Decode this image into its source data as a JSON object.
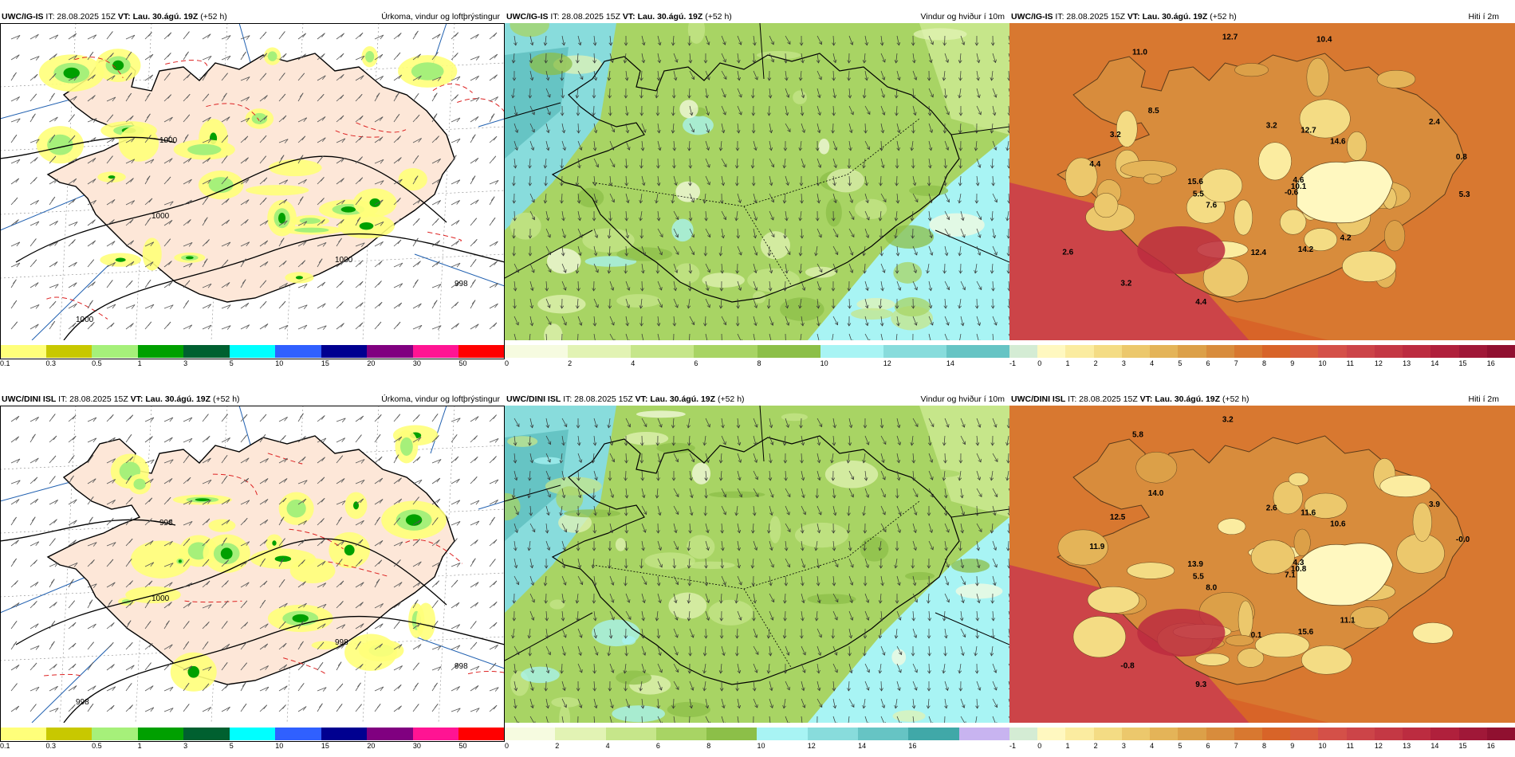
{
  "rows": [
    {
      "model": "UWC/IG-IS",
      "issue": "IT: 28.08.2025 15Z",
      "valid_label": "VT:",
      "valid": "Lau. 30.ágú. 19Z",
      "lead": "(+52 h)",
      "panels": {
        "precip": {
          "title": "Úrkoma, vindur og loftþrýstingur"
        },
        "wind": {
          "title": "Vindur og hviður í 10m"
        },
        "temp": {
          "title": "Hiti í 2m"
        }
      },
      "pressure_labels": [
        "1000",
        "1000",
        "1000",
        "998",
        "1000"
      ],
      "temp_labels": [
        "4.6",
        "7.6",
        "3.2",
        "4.2",
        "4.4",
        "2.4",
        "4.4",
        "11.0",
        "10.1",
        "5.5",
        "12.7",
        "14.2",
        "3.2",
        "0.8",
        "3.2",
        "12.7",
        "-0.6",
        "15.6",
        "14.6",
        "12.4",
        "8.5",
        "5.3",
        "2.6",
        "10.4"
      ],
      "wind_ticks": [
        "0",
        "2",
        "4",
        "6",
        "8",
        "10",
        "12",
        "14"
      ]
    },
    {
      "model": "UWC/DINI ISL",
      "issue": "IT: 28.08.2025 15Z",
      "valid_label": "VT:",
      "valid": "Lau. 30.ágú. 19Z",
      "lead": "(+52 h)",
      "panels": {
        "precip": {
          "title": "Úrkoma, vindur og loftþrýstingur"
        },
        "wind": {
          "title": "Vindur og hviður í 10m"
        },
        "temp": {
          "title": "Hiti í 2m"
        }
      },
      "pressure_labels": [
        "1000",
        "998",
        "998",
        "998",
        "998"
      ],
      "temp_labels": [
        "4.3",
        "8.0",
        "2.6",
        "11.1",
        "11.9",
        "3.9",
        "9.3",
        "5.8",
        "10.8",
        "5.5",
        "11.6",
        "15.6",
        "12.5",
        "-0.0",
        "-0.8",
        "3.2",
        "7.1",
        "13.9",
        "10.6",
        "0.1",
        "14.0"
      ],
      "wind_ticks": [
        "0",
        "2",
        "4",
        "6",
        "8",
        "10",
        "12",
        "14",
        "16"
      ]
    }
  ],
  "precip_scale": {
    "ticks": [
      "0.1",
      "0.3",
      "0.5",
      "1",
      "3",
      "5",
      "10",
      "15",
      "20",
      "30",
      "50"
    ],
    "colors": [
      "#ffff7a",
      "#c8c800",
      "#a6f07a",
      "#00a000",
      "#006030",
      "#00ffff",
      "#3060ff",
      "#000090",
      "#800080",
      "#ff1493",
      "#ff0000"
    ]
  },
  "wind_scale": {
    "colors": [
      "#f6fbe0",
      "#e2f3b4",
      "#c6e68a",
      "#a8d464",
      "#8cbf48",
      "#a8f4f4",
      "#88dcdc",
      "#66c4c4",
      "#40a8a8",
      "#c8b4f0"
    ]
  },
  "temp_scale": {
    "ticks": [
      "-1",
      "0",
      "1",
      "2",
      "3",
      "4",
      "5",
      "6",
      "7",
      "8",
      "9",
      "10",
      "11",
      "12",
      "13",
      "14",
      "15",
      "16"
    ],
    "colors": [
      "#d4ecd4",
      "#fff8c0",
      "#fbeca0",
      "#f4dc84",
      "#ecc86c",
      "#e4b458",
      "#dca048",
      "#d88c3c",
      "#d87830",
      "#d86428",
      "#d85c3c",
      "#d45048",
      "#cc4448",
      "#c43844",
      "#bc2c40",
      "#b0203c",
      "#a01838",
      "#901030"
    ]
  },
  "map_colors": {
    "land_pink": "#fde7d8",
    "sea": "#ffffff",
    "contour_red": "#dd2222",
    "blue_line": "#2060b0"
  }
}
